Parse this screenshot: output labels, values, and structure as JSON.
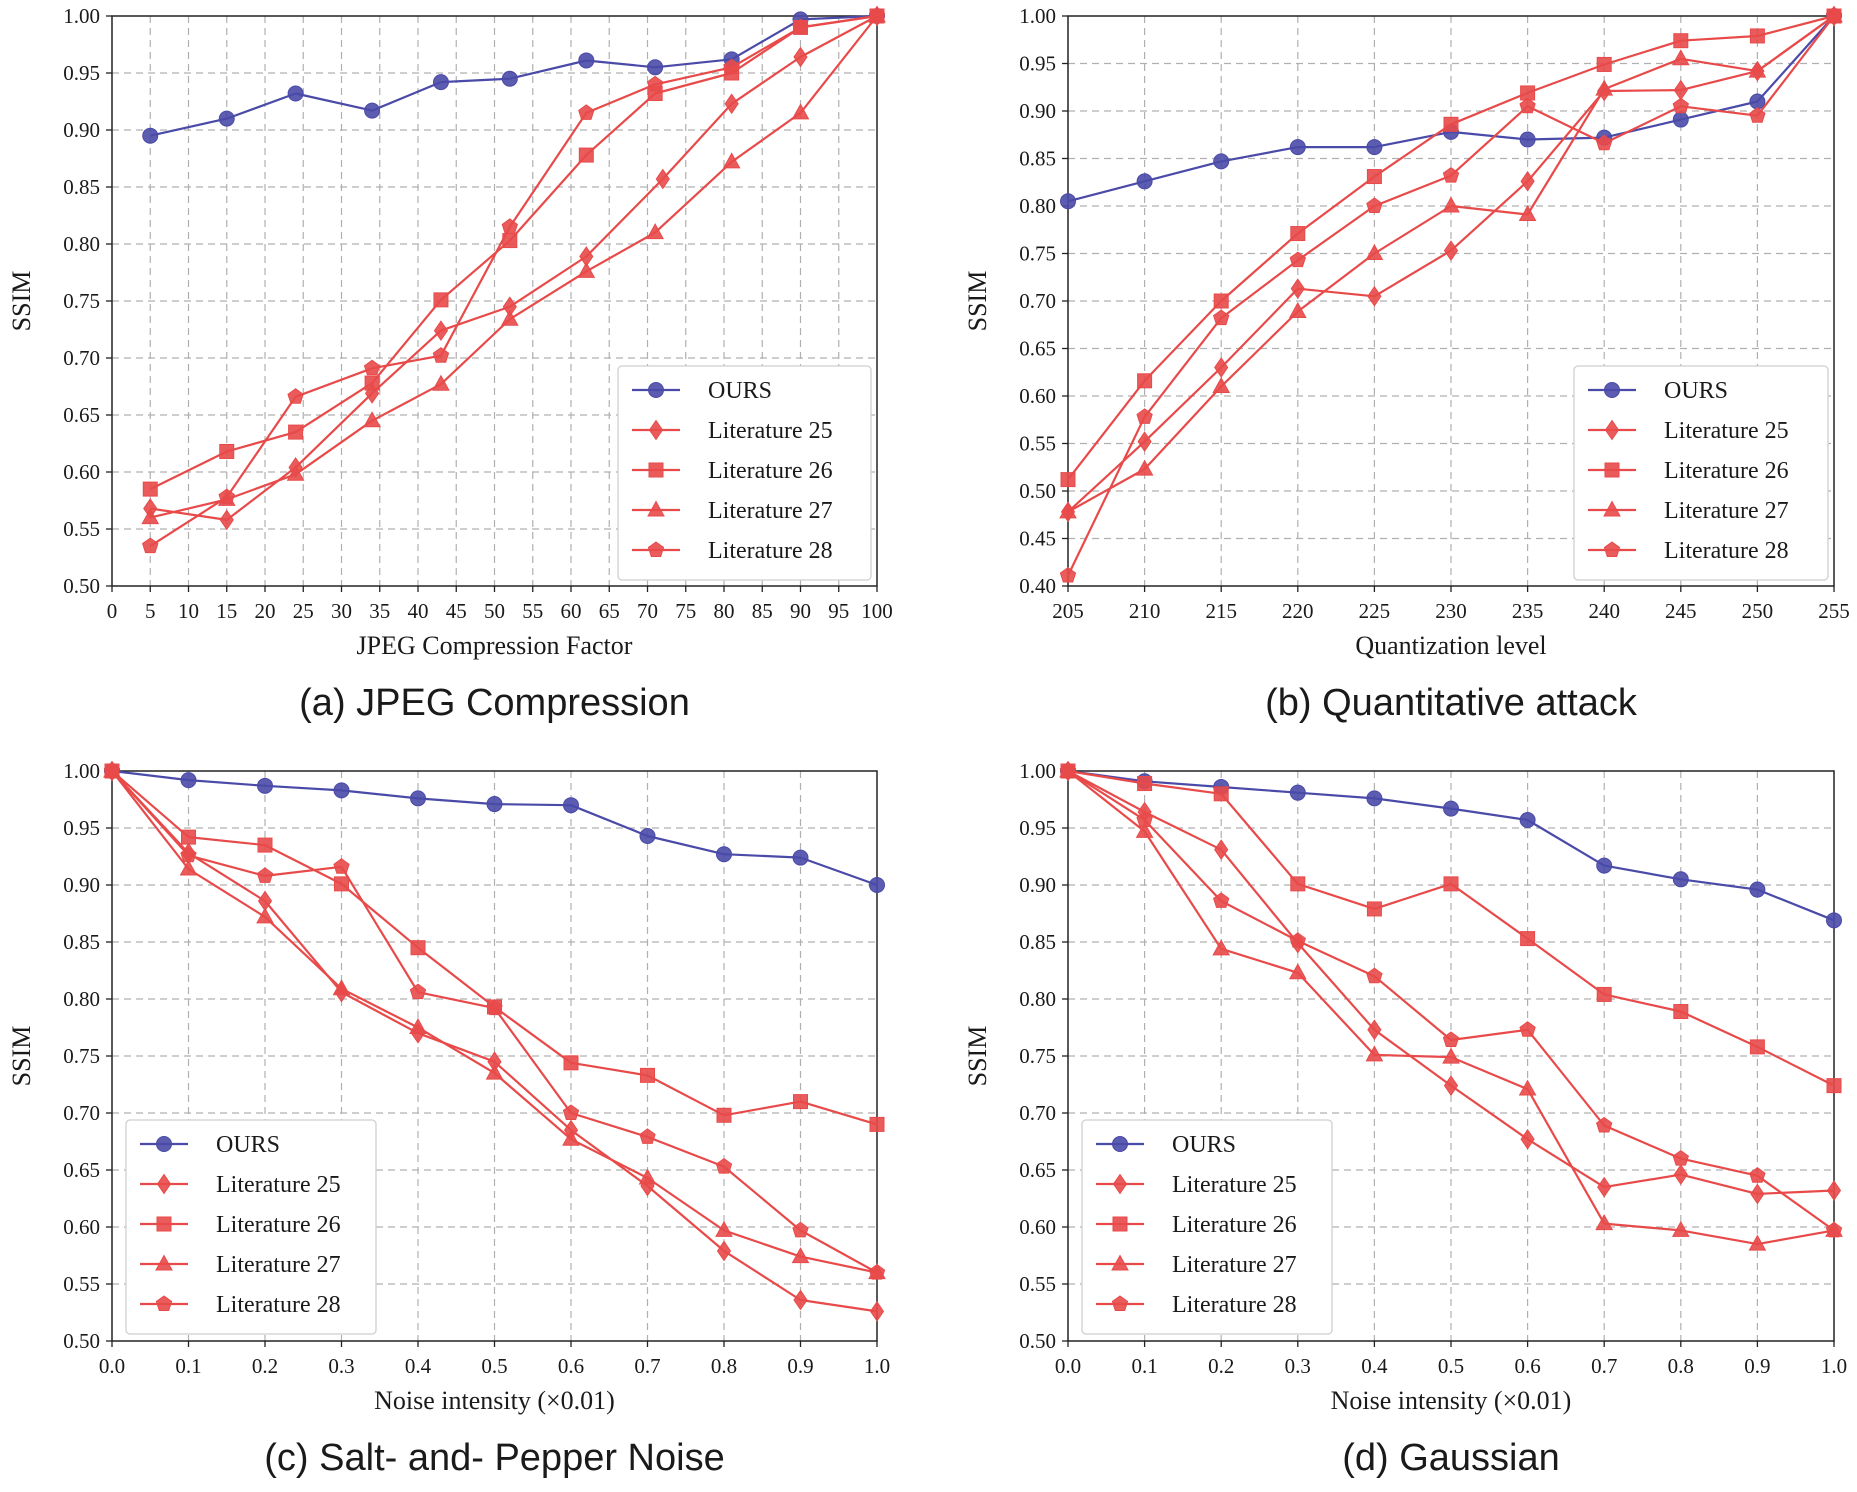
{
  "chart_data": [
    {
      "type": "line",
      "id": "a",
      "caption": "(a) JPEG Compression",
      "xlabel": "JPEG Compression Factor",
      "ylabel": "SSIM",
      "xlim": [
        0,
        100
      ],
      "ylim": [
        0.5,
        1.0
      ],
      "xticks": [
        0,
        5,
        10,
        15,
        20,
        25,
        30,
        35,
        40,
        45,
        50,
        55,
        60,
        65,
        70,
        75,
        80,
        85,
        90,
        95,
        100
      ],
      "xtick_labels": [
        "0",
        "5",
        "10",
        "15",
        "20",
        "25",
        "30",
        "35",
        "40",
        "45",
        "50",
        "55",
        "60",
        "65",
        "70",
        "75",
        "80",
        "85",
        "90",
        "95",
        "100"
      ],
      "yticks": [
        0.5,
        0.55,
        0.6,
        0.65,
        0.7,
        0.75,
        0.8,
        0.85,
        0.9,
        0.95,
        1.0
      ],
      "ytick_labels": [
        "0.50",
        "0.55",
        "0.60",
        "0.65",
        "0.70",
        "0.75",
        "0.80",
        "0.85",
        "0.90",
        "0.95",
        "1.00"
      ],
      "legend_position": "lower-right",
      "grid": true,
      "series": [
        {
          "name": "OURS",
          "marker": "circle",
          "color": "#4a4aa8",
          "x": [
            5,
            15,
            24,
            34,
            43,
            52,
            62,
            71,
            81,
            90,
            100
          ],
          "y": [
            0.895,
            0.91,
            0.932,
            0.917,
            0.942,
            0.945,
            0.961,
            0.955,
            0.962,
            0.997,
            1.0
          ]
        },
        {
          "name": "Literature 25",
          "marker": "diamond",
          "color": "#e84a4a",
          "x": [
            5,
            15,
            24,
            34,
            43,
            52,
            62,
            72,
            81,
            90,
            100
          ],
          "y": [
            0.568,
            0.558,
            0.604,
            0.669,
            0.724,
            0.745,
            0.789,
            0.857,
            0.923,
            0.964,
            1.0
          ]
        },
        {
          "name": "Literature 26",
          "marker": "square",
          "color": "#e84a4a",
          "x": [
            5,
            15,
            24,
            34,
            43,
            52,
            62,
            71,
            81,
            90,
            100
          ],
          "y": [
            0.585,
            0.618,
            0.635,
            0.678,
            0.751,
            0.803,
            0.878,
            0.932,
            0.95,
            0.99,
            1.0
          ]
        },
        {
          "name": "Literature 27",
          "marker": "triangle",
          "color": "#e84a4a",
          "x": [
            5,
            15,
            24,
            34,
            43,
            52,
            62,
            71,
            81,
            90,
            100
          ],
          "y": [
            0.56,
            0.576,
            0.598,
            0.645,
            0.677,
            0.734,
            0.776,
            0.81,
            0.872,
            0.915,
            1.0
          ]
        },
        {
          "name": "Literature 28",
          "marker": "pentagon",
          "color": "#e84a4a",
          "x": [
            5,
            15,
            24,
            34,
            43,
            52,
            62,
            71,
            81,
            90,
            100
          ],
          "y": [
            0.535,
            0.578,
            0.666,
            0.691,
            0.702,
            0.815,
            0.915,
            0.94,
            0.955,
            0.99,
            1.0
          ]
        }
      ]
    },
    {
      "type": "line",
      "id": "b",
      "caption": "(b) Quantitative attack",
      "xlabel": "Quantization level",
      "ylabel": "SSIM",
      "xlim": [
        205,
        255
      ],
      "ylim": [
        0.4,
        1.0
      ],
      "xticks": [
        205,
        210,
        215,
        220,
        225,
        230,
        235,
        240,
        245,
        250,
        255
      ],
      "xtick_labels": [
        "205",
        "210",
        "215",
        "220",
        "225",
        "230",
        "235",
        "240",
        "245",
        "250",
        "255"
      ],
      "yticks": [
        0.4,
        0.45,
        0.5,
        0.55,
        0.6,
        0.65,
        0.7,
        0.75,
        0.8,
        0.85,
        0.9,
        0.95,
        1.0
      ],
      "ytick_labels": [
        "0.40",
        "0.45",
        "0.50",
        "0.55",
        "0.60",
        "0.65",
        "0.70",
        "0.75",
        "0.80",
        "0.85",
        "0.90",
        "0.95",
        "1.00"
      ],
      "legend_position": "lower-right",
      "grid": true,
      "series": [
        {
          "name": "OURS",
          "marker": "circle",
          "color": "#4a4aa8",
          "x": [
            205,
            210,
            215,
            220,
            225,
            230,
            235,
            240,
            245,
            250,
            255
          ],
          "y": [
            0.805,
            0.826,
            0.847,
            0.862,
            0.862,
            0.878,
            0.87,
            0.872,
            0.891,
            0.91,
            1.0
          ]
        },
        {
          "name": "Literature 25",
          "marker": "diamond",
          "color": "#e84a4a",
          "x": [
            205,
            210,
            215,
            220,
            225,
            230,
            235,
            240,
            245,
            250,
            255
          ],
          "y": [
            0.478,
            0.552,
            0.63,
            0.713,
            0.705,
            0.753,
            0.826,
            0.921,
            0.922,
            0.942,
            1.0
          ]
        },
        {
          "name": "Literature 26",
          "marker": "square",
          "color": "#e84a4a",
          "x": [
            205,
            210,
            215,
            220,
            225,
            230,
            235,
            240,
            245,
            250,
            255
          ],
          "y": [
            0.512,
            0.616,
            0.7,
            0.771,
            0.831,
            0.886,
            0.919,
            0.949,
            0.974,
            0.979,
            1.0
          ]
        },
        {
          "name": "Literature 27",
          "marker": "triangle",
          "color": "#e84a4a",
          "x": [
            205,
            210,
            215,
            220,
            225,
            230,
            235,
            240,
            245,
            250,
            255
          ],
          "y": [
            0.478,
            0.523,
            0.61,
            0.689,
            0.75,
            0.8,
            0.791,
            0.923,
            0.955,
            0.942,
            1.0
          ]
        },
        {
          "name": "Literature 28",
          "marker": "pentagon",
          "color": "#e84a4a",
          "x": [
            205,
            210,
            215,
            220,
            225,
            230,
            235,
            240,
            245,
            250,
            255
          ],
          "y": [
            0.411,
            0.578,
            0.682,
            0.743,
            0.8,
            0.832,
            0.905,
            0.866,
            0.905,
            0.895,
            1.0
          ]
        }
      ]
    },
    {
      "type": "line",
      "id": "c",
      "caption": "(c) Salt- and- Pepper Noise",
      "xlabel": "Noise intensity (×0.01)",
      "ylabel": "SSIM",
      "xlim": [
        0.0,
        1.0
      ],
      "ylim": [
        0.5,
        1.0
      ],
      "xticks": [
        0.0,
        0.1,
        0.2,
        0.3,
        0.4,
        0.5,
        0.6,
        0.7,
        0.8,
        0.9,
        1.0
      ],
      "xtick_labels": [
        "0.0",
        "0.1",
        "0.2",
        "0.3",
        "0.4",
        "0.5",
        "0.6",
        "0.7",
        "0.8",
        "0.9",
        "1.0"
      ],
      "yticks": [
        0.5,
        0.55,
        0.6,
        0.65,
        0.7,
        0.75,
        0.8,
        0.85,
        0.9,
        0.95,
        1.0
      ],
      "ytick_labels": [
        "0.50",
        "0.55",
        "0.60",
        "0.65",
        "0.70",
        "0.75",
        "0.80",
        "0.85",
        "0.90",
        "0.95",
        "1.00"
      ],
      "legend_position": "lower-left",
      "grid": true,
      "series": [
        {
          "name": "OURS",
          "marker": "circle",
          "color": "#4a4aa8",
          "x": [
            0,
            0.1,
            0.2,
            0.3,
            0.4,
            0.5,
            0.6,
            0.7,
            0.8,
            0.9,
            1.0
          ],
          "y": [
            1.0,
            0.992,
            0.987,
            0.983,
            0.976,
            0.971,
            0.97,
            0.943,
            0.927,
            0.924,
            0.9
          ]
        },
        {
          "name": "Literature 25",
          "marker": "diamond",
          "color": "#e84a4a",
          "x": [
            0,
            0.1,
            0.2,
            0.3,
            0.4,
            0.5,
            0.6,
            0.7,
            0.8,
            0.9,
            1.0
          ],
          "y": [
            1.0,
            0.928,
            0.886,
            0.806,
            0.77,
            0.745,
            0.685,
            0.636,
            0.579,
            0.536,
            0.526
          ]
        },
        {
          "name": "Literature 26",
          "marker": "square",
          "color": "#e84a4a",
          "x": [
            0,
            0.1,
            0.2,
            0.3,
            0.4,
            0.5,
            0.6,
            0.7,
            0.8,
            0.9,
            1.0
          ],
          "y": [
            1.0,
            0.942,
            0.935,
            0.901,
            0.845,
            0.793,
            0.744,
            0.733,
            0.698,
            0.71,
            0.69
          ]
        },
        {
          "name": "Literature 27",
          "marker": "triangle",
          "color": "#e84a4a",
          "x": [
            0,
            0.1,
            0.2,
            0.3,
            0.4,
            0.5,
            0.6,
            0.7,
            0.8,
            0.9,
            1.0
          ],
          "y": [
            1.0,
            0.914,
            0.872,
            0.809,
            0.775,
            0.735,
            0.677,
            0.643,
            0.597,
            0.574,
            0.56
          ]
        },
        {
          "name": "Literature 28",
          "marker": "pentagon",
          "color": "#e84a4a",
          "x": [
            0,
            0.1,
            0.2,
            0.3,
            0.4,
            0.5,
            0.6,
            0.7,
            0.8,
            0.9,
            1.0
          ],
          "y": [
            1.0,
            0.926,
            0.908,
            0.916,
            0.806,
            0.792,
            0.7,
            0.679,
            0.653,
            0.597,
            0.56
          ]
        }
      ]
    },
    {
      "type": "line",
      "id": "d",
      "caption": "(d) Gaussian",
      "xlabel": "Noise intensity (×0.01)",
      "ylabel": "SSIM",
      "xlim": [
        0.0,
        1.0
      ],
      "ylim": [
        0.5,
        1.0
      ],
      "xticks": [
        0.0,
        0.1,
        0.2,
        0.3,
        0.4,
        0.5,
        0.6,
        0.7,
        0.8,
        0.9,
        1.0
      ],
      "xtick_labels": [
        "0.0",
        "0.1",
        "0.2",
        "0.3",
        "0.4",
        "0.5",
        "0.6",
        "0.7",
        "0.8",
        "0.9",
        "1.0"
      ],
      "yticks": [
        0.5,
        0.55,
        0.6,
        0.65,
        0.7,
        0.75,
        0.8,
        0.85,
        0.9,
        0.95,
        1.0
      ],
      "ytick_labels": [
        "0.50",
        "0.55",
        "0.60",
        "0.65",
        "0.70",
        "0.75",
        "0.80",
        "0.85",
        "0.90",
        "0.95",
        "1.00"
      ],
      "legend_position": "lower-left",
      "grid": true,
      "series": [
        {
          "name": "OURS",
          "marker": "circle",
          "color": "#4a4aa8",
          "x": [
            0,
            0.1,
            0.2,
            0.3,
            0.4,
            0.5,
            0.6,
            0.7,
            0.8,
            0.9,
            1.0
          ],
          "y": [
            1.0,
            0.991,
            0.986,
            0.981,
            0.976,
            0.967,
            0.957,
            0.917,
            0.905,
            0.896,
            0.869
          ]
        },
        {
          "name": "Literature 25",
          "marker": "diamond",
          "color": "#e84a4a",
          "x": [
            0,
            0.1,
            0.2,
            0.3,
            0.4,
            0.5,
            0.6,
            0.7,
            0.8,
            0.9,
            1.0
          ],
          "y": [
            1.0,
            0.964,
            0.931,
            0.849,
            0.773,
            0.724,
            0.677,
            0.635,
            0.646,
            0.629,
            0.632
          ]
        },
        {
          "name": "Literature 26",
          "marker": "square",
          "color": "#e84a4a",
          "x": [
            0,
            0.1,
            0.2,
            0.3,
            0.4,
            0.5,
            0.6,
            0.7,
            0.8,
            0.9,
            1.0
          ],
          "y": [
            1.0,
            0.989,
            0.98,
            0.901,
            0.879,
            0.901,
            0.853,
            0.804,
            0.789,
            0.758,
            0.724
          ]
        },
        {
          "name": "Literature 27",
          "marker": "triangle",
          "color": "#e84a4a",
          "x": [
            0,
            0.1,
            0.2,
            0.3,
            0.4,
            0.5,
            0.6,
            0.7,
            0.8,
            0.9,
            1.0
          ],
          "y": [
            1.0,
            0.947,
            0.844,
            0.823,
            0.751,
            0.749,
            0.721,
            0.603,
            0.597,
            0.585,
            0.597
          ]
        },
        {
          "name": "Literature 28",
          "marker": "pentagon",
          "color": "#e84a4a",
          "x": [
            0,
            0.1,
            0.2,
            0.3,
            0.4,
            0.5,
            0.6,
            0.7,
            0.8,
            0.9,
            1.0
          ],
          "y": [
            1.0,
            0.957,
            0.886,
            0.851,
            0.82,
            0.764,
            0.773,
            0.689,
            0.66,
            0.645,
            0.597
          ]
        }
      ]
    }
  ]
}
